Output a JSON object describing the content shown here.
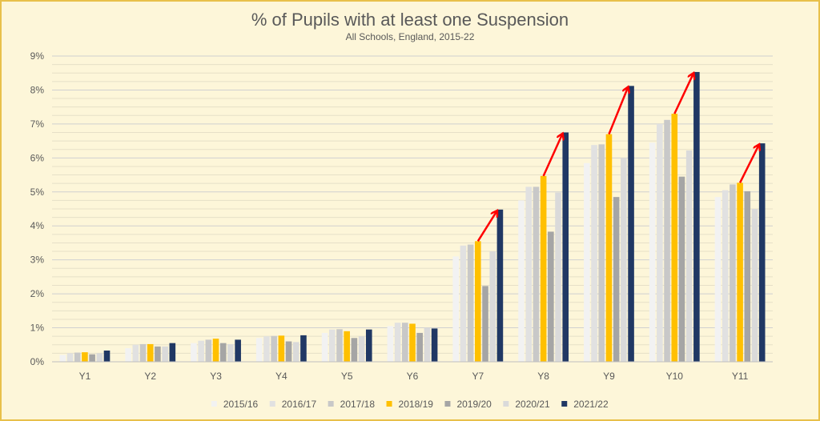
{
  "chart_data": {
    "type": "bar",
    "title": "% of Pupils with at least one Suspension",
    "subtitle": "All Schools, England, 2015-22",
    "xlabel": "",
    "ylabel": "",
    "ylim": [
      0,
      9
    ],
    "yticks": [
      0,
      1,
      2,
      3,
      4,
      5,
      6,
      7,
      8,
      9
    ],
    "ytick_labels": [
      "0%",
      "1%",
      "2%",
      "3%",
      "4%",
      "5%",
      "6%",
      "7%",
      "8%",
      "9%"
    ],
    "grid": true,
    "legend_position": "bottom",
    "categories": [
      "Y1",
      "Y2",
      "Y3",
      "Y4",
      "Y5",
      "Y6",
      "Y7",
      "Y8",
      "Y9",
      "Y10",
      "Y11"
    ],
    "series": [
      {
        "name": "2015/16",
        "color": "#f2f2f2",
        "values": [
          0.2,
          0.4,
          0.55,
          0.7,
          0.85,
          1.05,
          3.1,
          4.75,
          5.85,
          6.45,
          4.85
        ]
      },
      {
        "name": "2016/17",
        "color": "#e1e1e1",
        "values": [
          0.25,
          0.5,
          0.62,
          0.75,
          0.95,
          1.15,
          3.42,
          5.15,
          6.38,
          7.0,
          5.05
        ]
      },
      {
        "name": "2017/18",
        "color": "#c8c8c8",
        "values": [
          0.27,
          0.52,
          0.65,
          0.76,
          0.96,
          1.15,
          3.45,
          5.15,
          6.4,
          7.12,
          5.22
        ]
      },
      {
        "name": "2018/19",
        "color": "#ffc000",
        "values": [
          0.28,
          0.52,
          0.68,
          0.77,
          0.9,
          1.12,
          3.55,
          5.47,
          6.7,
          7.3,
          5.27
        ]
      },
      {
        "name": "2019/20",
        "color": "#a5a5a5",
        "values": [
          0.22,
          0.45,
          0.55,
          0.6,
          0.7,
          0.85,
          2.23,
          3.83,
          4.85,
          5.45,
          5.02
        ]
      },
      {
        "name": "2020/21",
        "color": "#dadada",
        "values": [
          0.25,
          0.45,
          0.52,
          0.58,
          0.75,
          1.0,
          3.25,
          4.98,
          5.98,
          6.22,
          4.5
        ]
      },
      {
        "name": "2021/22",
        "color": "#203864",
        "values": [
          0.33,
          0.55,
          0.65,
          0.78,
          0.95,
          0.98,
          4.48,
          6.75,
          8.12,
          8.53,
          6.43
        ]
      }
    ],
    "annotations": [
      {
        "type": "arrow",
        "color": "#ff0000",
        "category": "Y7",
        "from_series": "2018/19",
        "to_series": "2021/22"
      },
      {
        "type": "arrow",
        "color": "#ff0000",
        "category": "Y8",
        "from_series": "2018/19",
        "to_series": "2021/22"
      },
      {
        "type": "arrow",
        "color": "#ff0000",
        "category": "Y9",
        "from_series": "2018/19",
        "to_series": "2021/22"
      },
      {
        "type": "arrow",
        "color": "#ff0000",
        "category": "Y10",
        "from_series": "2018/19",
        "to_series": "2021/22"
      },
      {
        "type": "arrow",
        "color": "#ff0000",
        "category": "Y11",
        "from_series": "2018/19",
        "to_series": "2021/22"
      }
    ],
    "colors": {
      "background": "#fdf6d9",
      "border": "#e8c04a",
      "grid": "#d9d9d9",
      "text": "#595959"
    }
  }
}
